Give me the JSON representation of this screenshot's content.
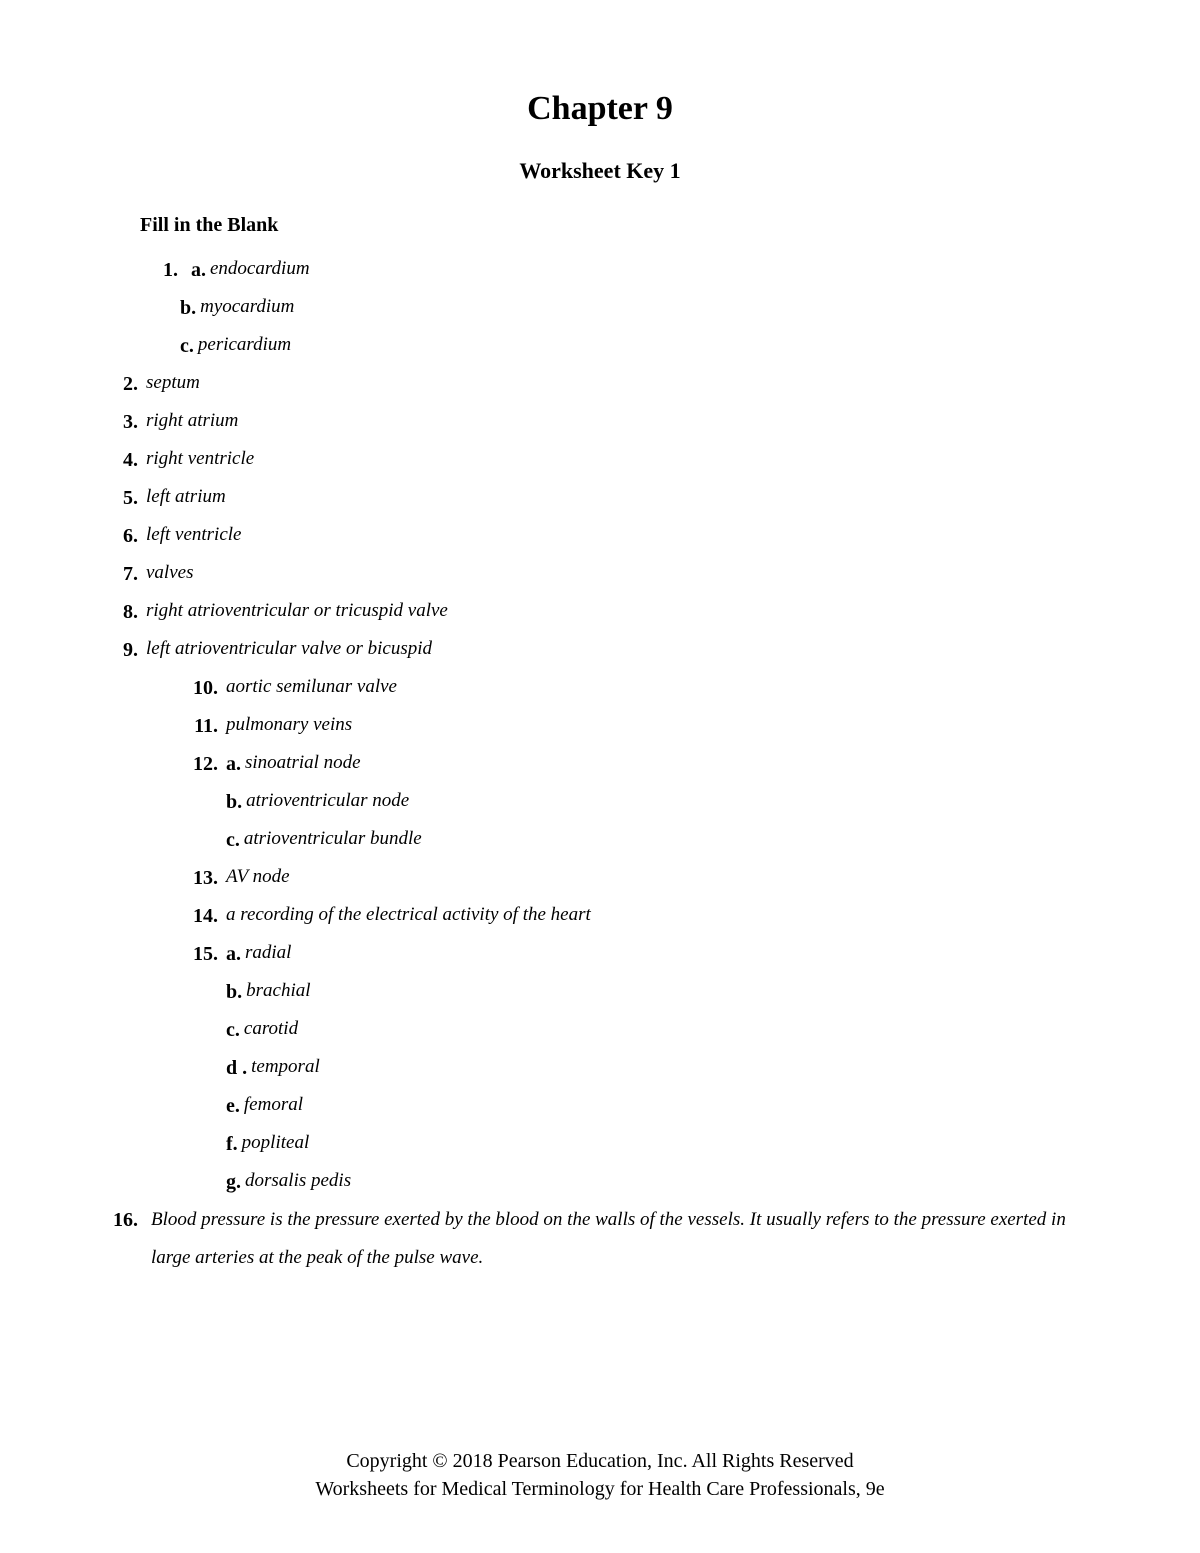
{
  "chapter_title": "Chapter 9",
  "worksheet_title": "Worksheet Key 1",
  "section_heading": "Fill in the Blank",
  "items": {
    "q1": {
      "num": "1.",
      "a_label": "a.",
      "a": "endocardium",
      "b_label": "b.",
      "b": "myocardium",
      "c_label": "c.",
      "c": "pericardium"
    },
    "q2": {
      "num": "2.",
      "ans": "septum"
    },
    "q3": {
      "num": "3.",
      "ans": "right atrium"
    },
    "q4": {
      "num": "4.",
      "ans": "right ventricle"
    },
    "q5": {
      "num": "5.",
      "ans": "left atrium"
    },
    "q6": {
      "num": "6.",
      "ans": "left ventricle"
    },
    "q7": {
      "num": "7.",
      "ans": "valves"
    },
    "q8": {
      "num": "8.",
      "ans": "right atrioventricular or tricuspid valve"
    },
    "q9": {
      "num": "9.",
      "ans": "left atrioventricular valve or bicuspid"
    },
    "q10": {
      "num": "10.",
      "ans": "aortic semilunar valve"
    },
    "q11": {
      "num": "11.",
      "ans": "pulmonary veins"
    },
    "q12": {
      "num": "12.",
      "a_label": "a.",
      "a": "sinoatrial node",
      "b_label": "b.",
      "b": "atrioventricular node",
      "c_label": "c.",
      "c": "atrioventricular bundle"
    },
    "q13": {
      "num": "13.",
      "ans": "AV node"
    },
    "q14": {
      "num": "14.",
      "ans": "a recording of the electrical activity of the heart"
    },
    "q15": {
      "num": "15.",
      "a_label": "a.",
      "a": "radial",
      "b_label": "b.",
      "b": "brachial",
      "c_label": "c.",
      "c": "carotid",
      "d_label": "d .",
      "d": "temporal",
      "e_label": "e.",
      "e": "femoral",
      "f_label": "f.",
      "f": "popliteal",
      "g_label": "g.",
      "g": "dorsalis pedis"
    },
    "q16": {
      "num": "16.",
      "ans": "Blood pressure is the pressure exerted by the blood on the walls of the vessels. It usually refers to the pressure exerted in large arteries at the peak of the pulse wave."
    }
  },
  "footer_line1": "Copyright © 2018 Pearson Education, Inc. All Rights Reserved",
  "footer_line2": "Worksheets for Medical Terminology for Health Care Professionals, 9e"
}
